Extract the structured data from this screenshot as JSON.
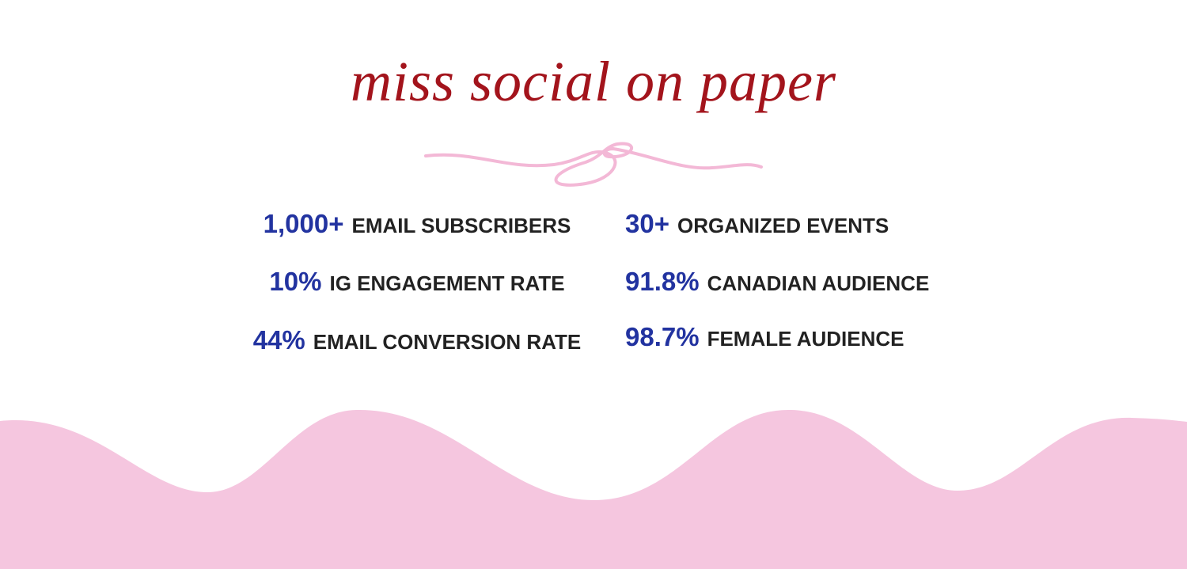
{
  "title": "miss social on paper",
  "stats": {
    "left": [
      {
        "number": "1,000+",
        "label": "EMAIL SUBSCRIBERS"
      },
      {
        "number": "10%",
        "label": "IG ENGAGEMENT RATE"
      },
      {
        "number": "44%",
        "label": "EMAIL CONVERSION RATE"
      }
    ],
    "right": [
      {
        "number": "30+",
        "label": "ORGANIZED EVENTS"
      },
      {
        "number": "91.8%",
        "label": "CANADIAN AUDIENCE"
      },
      {
        "number": "98.7%",
        "label": "FEMALE AUDIENCE"
      }
    ]
  }
}
